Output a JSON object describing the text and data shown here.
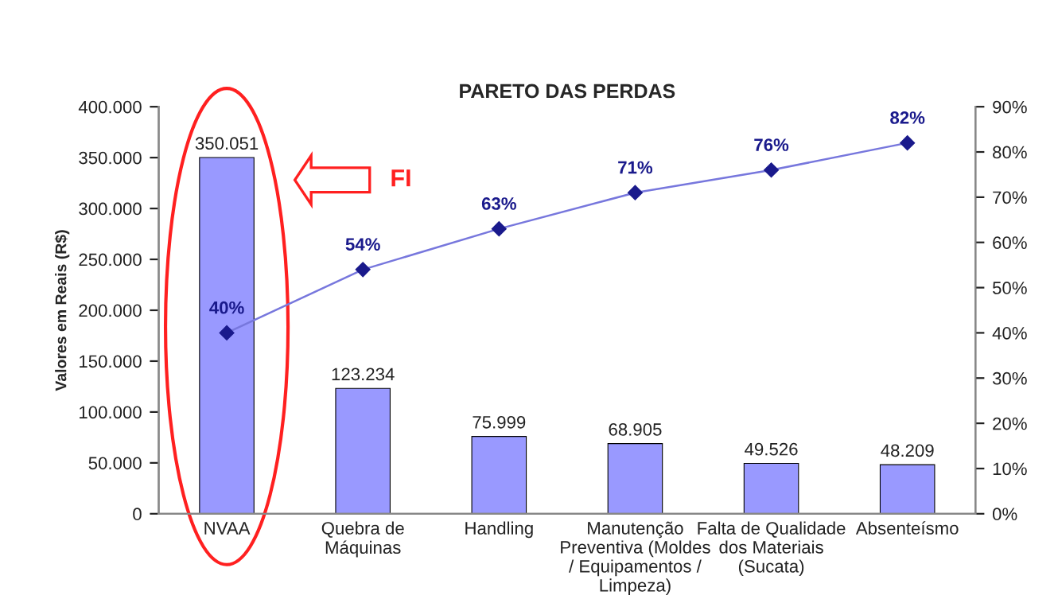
{
  "chart_data": {
    "type": "bar",
    "title": "PARETO DAS PERDAS",
    "ylabel": "Valores em Reais (R$)",
    "categories": [
      "NVAA",
      "Quebra de\nMáquinas",
      "Handling",
      "Manutenção\nPreventiva (Moldes\n/ Equipamentos /\nLimpeza)",
      "Falta de Qualidade\ndos Materiais\n(Sucata)",
      "Absenteísmo"
    ],
    "series": [
      {
        "color": "#9999ff",
        "values": [
          350051,
          123234,
          75999,
          68905,
          49526,
          48209
        ],
        "value_labels": [
          "350.051",
          "123.234",
          "75.999",
          "68.905",
          "49.526",
          "48.209"
        ]
      },
      {
        "type": "line",
        "axis": "y2",
        "color": "#1a1a8c",
        "marker": "diamond",
        "values": [
          40,
          54,
          63,
          71,
          76,
          82
        ],
        "value_labels": [
          "40%",
          "54%",
          "63%",
          "71%",
          "76%",
          "82%"
        ]
      }
    ],
    "ylim": [
      0,
      400000
    ],
    "yticks": [
      {
        "value": 0,
        "label": "0"
      },
      {
        "value": 50000,
        "label": "50.000"
      },
      {
        "value": 100000,
        "label": "100.000"
      },
      {
        "value": 150000,
        "label": "150.000"
      },
      {
        "value": 200000,
        "label": "200.000"
      },
      {
        "value": 250000,
        "label": "250.000"
      },
      {
        "value": 300000,
        "label": "300.000"
      },
      {
        "value": 350000,
        "label": "350.000"
      },
      {
        "value": 400000,
        "label": "400.000"
      }
    ],
    "y2lim": [
      0,
      90
    ],
    "y2ticks": [
      {
        "value": 0,
        "label": "0%"
      },
      {
        "value": 10,
        "label": "10%"
      },
      {
        "value": 20,
        "label": "20%"
      },
      {
        "value": 30,
        "label": "30%"
      },
      {
        "value": 40,
        "label": "40%"
      },
      {
        "value": 50,
        "label": "50%"
      },
      {
        "value": 60,
        "label": "60%"
      },
      {
        "value": 70,
        "label": "70%"
      },
      {
        "value": 80,
        "label": "80%"
      },
      {
        "value": 90,
        "label": "90%"
      }
    ],
    "annotations": [
      "FI"
    ],
    "grid": false,
    "legend": false
  }
}
